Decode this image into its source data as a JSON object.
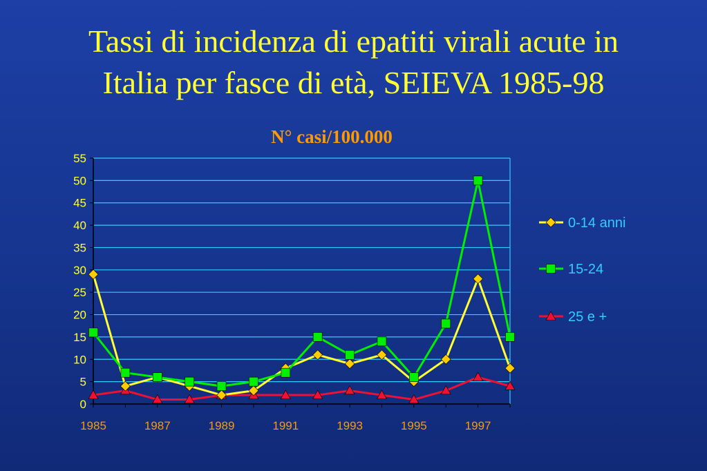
{
  "slide": {
    "title_line1": "Tassi di incidenza di epatiti virali acute in",
    "title_line2": "Italia per fasce di età, SEIEVA 1985-98"
  },
  "colors": {
    "background": "#17389a",
    "title": "#ffff33",
    "chart_title": "#ff9900",
    "axis_text": "#ffff33",
    "x_tick_text": "#ff9900",
    "grid": "#33ccff",
    "legend_text": "#33ccff"
  },
  "chart_data": {
    "type": "line",
    "title": "N° casi/100.000",
    "xlabel": "",
    "ylabel": "",
    "x": [
      1985,
      1986,
      1987,
      1988,
      1989,
      1990,
      1991,
      1992,
      1993,
      1994,
      1995,
      1996,
      1997,
      1998
    ],
    "x_tick_labels": [
      "1985",
      "1987",
      "1989",
      "1991",
      "1993",
      "1995",
      "1997"
    ],
    "x_tick_values": [
      1985,
      1987,
      1989,
      1991,
      1993,
      1995,
      1997
    ],
    "y_ticks": [
      0,
      5,
      10,
      15,
      20,
      25,
      30,
      35,
      40,
      45,
      50,
      55
    ],
    "ylim": [
      0,
      55
    ],
    "grid": true,
    "legend_position": "right",
    "series": [
      {
        "name": "0-14 anni",
        "color": "#ffcc00",
        "line_color": "#ffff33",
        "marker": "diamond",
        "values": [
          29,
          4,
          6,
          4,
          2,
          3,
          8,
          11,
          9,
          11,
          5,
          10,
          28,
          8
        ]
      },
      {
        "name": "15-24",
        "color": "#00ee00",
        "line_color": "#00ee00",
        "marker": "square",
        "values": [
          16,
          7,
          6,
          5,
          4,
          5,
          7,
          15,
          11,
          14,
          6,
          18,
          50,
          15
        ]
      },
      {
        "name": "25 e +",
        "color": "#ee1133",
        "line_color": "#ee1133",
        "marker": "triangle",
        "values": [
          2,
          3,
          1,
          1,
          2,
          2,
          2,
          2,
          3,
          2,
          1,
          3,
          6,
          4
        ]
      }
    ]
  }
}
